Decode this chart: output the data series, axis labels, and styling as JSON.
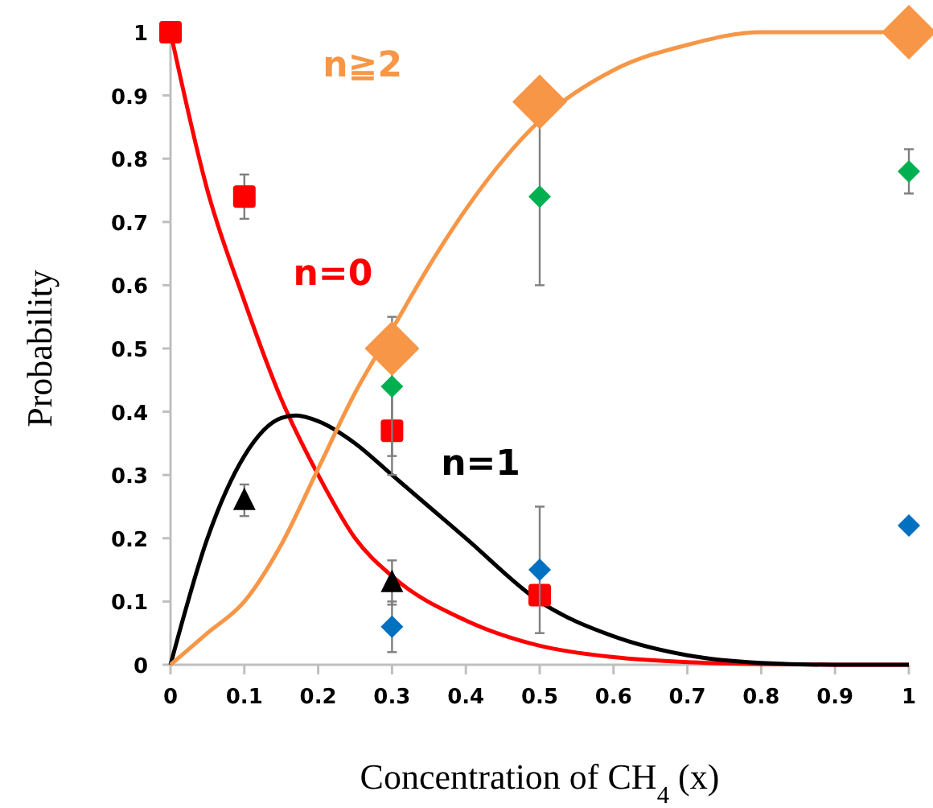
{
  "chart_data": {
    "type": "line",
    "xlabel": "Concentration of CH$_{4}$ (x)",
    "ylabel": "Probability",
    "xlim": [
      0,
      1
    ],
    "ylim": [
      0,
      1
    ],
    "xticks": [
      0,
      0.1,
      0.2,
      0.3,
      0.4,
      0.5,
      0.6,
      0.7,
      0.8,
      0.9,
      1
    ],
    "yticks": [
      0,
      0.1,
      0.2,
      0.3,
      0.4,
      0.5,
      0.6,
      0.7,
      0.8,
      0.9,
      1
    ],
    "grid": false,
    "series": [
      {
        "name": "n=0",
        "color": "#ff0000",
        "x": [
          0,
          0.05,
          0.1,
          0.15,
          0.2,
          0.25,
          0.3,
          0.4,
          0.5,
          0.6,
          0.7,
          0.8,
          0.9,
          1
        ],
        "values": [
          1,
          0.75,
          0.575,
          0.42,
          0.3,
          0.2,
          0.14,
          0.07,
          0.03,
          0.012,
          0.004,
          0.001,
          0,
          0
        ]
      },
      {
        "name": "n=1",
        "color": "#000000",
        "x": [
          0,
          0.05,
          0.1,
          0.15,
          0.17,
          0.2,
          0.25,
          0.3,
          0.35,
          0.4,
          0.5,
          0.6,
          0.7,
          0.8,
          0.9,
          1
        ],
        "values": [
          0,
          0.2,
          0.33,
          0.39,
          0.394,
          0.385,
          0.35,
          0.3,
          0.25,
          0.2,
          0.1,
          0.045,
          0.015,
          0.003,
          0,
          0
        ]
      },
      {
        "name": "n≧2",
        "color": "#f79646",
        "x": [
          0,
          0.05,
          0.1,
          0.15,
          0.2,
          0.25,
          0.3,
          0.35,
          0.4,
          0.5,
          0.6,
          0.7,
          0.8,
          0.9,
          1
        ],
        "values": [
          0,
          0.05,
          0.1,
          0.19,
          0.31,
          0.43,
          0.53,
          0.63,
          0.72,
          0.86,
          0.94,
          0.98,
          1,
          1,
          1
        ]
      },
      {
        "type": "scatter",
        "marker": "square",
        "color": "#ff0000",
        "x": [
          0,
          0.1,
          0.3,
          0.5
        ],
        "values": [
          1,
          0.74,
          0.37,
          0.11
        ],
        "errors": [
          null,
          0.035,
          0.07,
          null
        ]
      },
      {
        "type": "scatter",
        "marker": "triangle",
        "color": "#000000",
        "x": [
          0.1,
          0.3
        ],
        "values": [
          0.26,
          0.13
        ],
        "errors": [
          0.025,
          0.035
        ]
      },
      {
        "type": "scatter",
        "marker": "diamond",
        "color": "#00b050",
        "x": [
          0.3,
          0.5,
          1
        ],
        "values": [
          0.44,
          0.74,
          0.78
        ],
        "errors": [
          0.11,
          0.14,
          0.035
        ]
      },
      {
        "type": "scatter",
        "marker": "diamond",
        "color": "#0070c0",
        "x": [
          0.3,
          0.5,
          1
        ],
        "values": [
          0.06,
          0.15,
          0.22
        ],
        "errors": [
          0.04,
          0.1,
          null
        ]
      },
      {
        "type": "scatter",
        "marker": "diamond",
        "color": "#f79646",
        "x": [
          0.3,
          0.5,
          1
        ],
        "values": [
          0.5,
          0.89,
          1
        ]
      }
    ]
  }
}
